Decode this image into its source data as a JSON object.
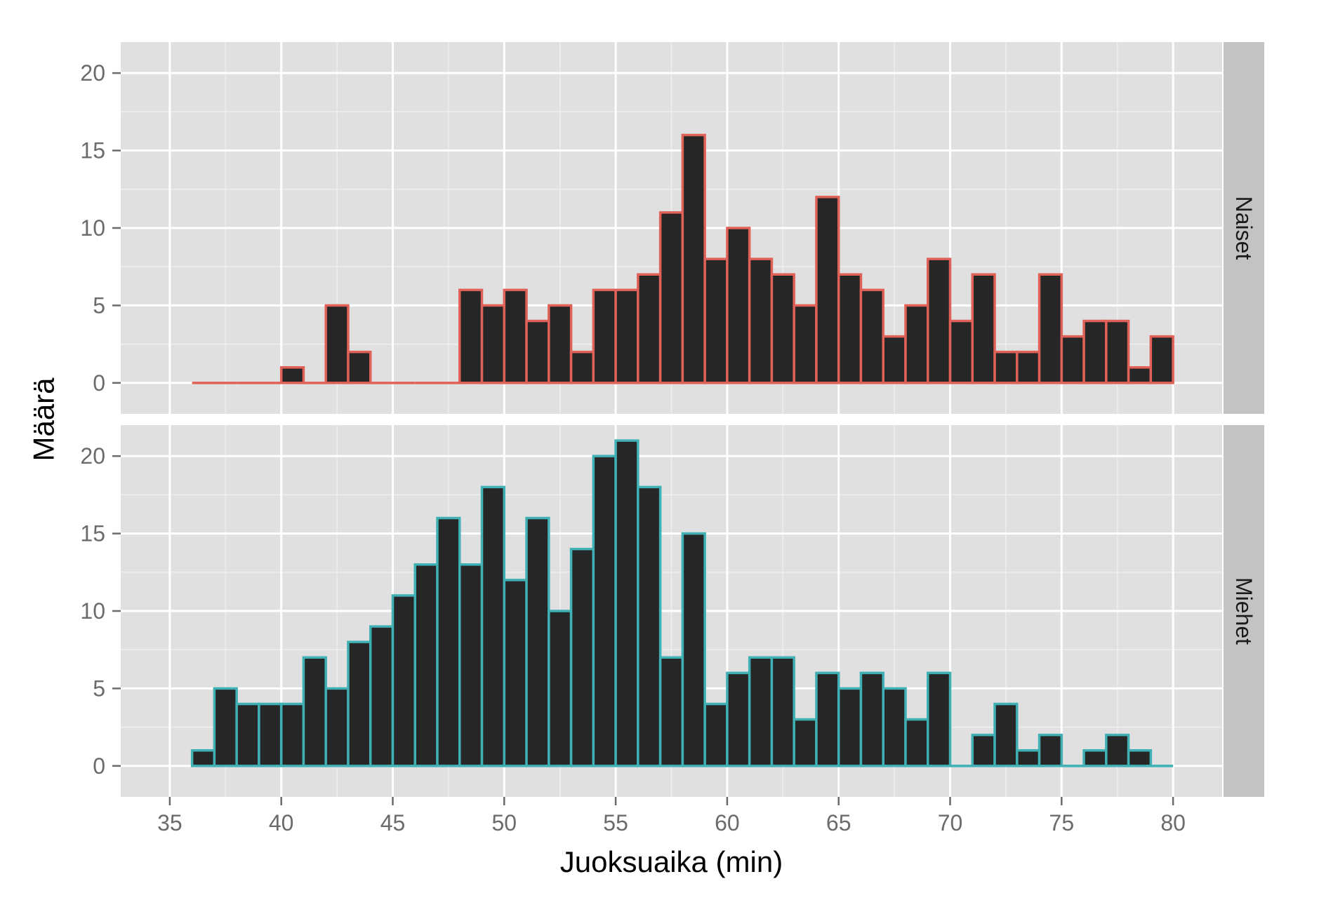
{
  "chart_data": {
    "type": "bar",
    "subtype": "faceted-histogram",
    "xlabel": "Juoksuaika (min)",
    "ylabel": "Määrä",
    "xlim": [
      32.8,
      82.2
    ],
    "ylim": [
      -2,
      22
    ],
    "x_ticks": [
      35,
      40,
      45,
      50,
      55,
      60,
      65,
      70,
      75,
      80
    ],
    "y_ticks": [
      0,
      5,
      10,
      15,
      20
    ],
    "grid": true,
    "bin_width": 1,
    "bin_start": 36,
    "bar_fill": "#262626",
    "panel_background": "#e0e0e0",
    "strip_background": "#c3c3c3",
    "series": [
      {
        "name": "Naiset",
        "color": "#e06158",
        "bins": [
          36,
          37,
          38,
          39,
          40,
          41,
          42,
          43,
          44,
          45,
          46,
          47,
          48,
          49,
          50,
          51,
          52,
          53,
          54,
          55,
          56,
          57,
          58,
          59,
          60,
          61,
          62,
          63,
          64,
          65,
          66,
          67,
          68,
          69,
          70,
          71,
          72,
          73,
          74,
          75,
          76,
          77,
          78,
          79
        ],
        "values": [
          0,
          0,
          0,
          0,
          1,
          0,
          5,
          2,
          0,
          0,
          0,
          0,
          6,
          5,
          6,
          4,
          5,
          2,
          6,
          6,
          7,
          11,
          16,
          8,
          10,
          8,
          7,
          5,
          12,
          7,
          6,
          3,
          5,
          8,
          4,
          7,
          2,
          2,
          7,
          3,
          4,
          4,
          1,
          3
        ]
      },
      {
        "name": "Miehet",
        "color": "#3fb0b3",
        "bins": [
          36,
          37,
          38,
          39,
          40,
          41,
          42,
          43,
          44,
          45,
          46,
          47,
          48,
          49,
          50,
          51,
          52,
          53,
          54,
          55,
          56,
          57,
          58,
          59,
          60,
          61,
          62,
          63,
          64,
          65,
          66,
          67,
          68,
          69,
          70,
          71,
          72,
          73,
          74,
          75,
          76,
          77,
          78,
          79
        ],
        "values": [
          1,
          5,
          4,
          4,
          4,
          7,
          5,
          8,
          9,
          11,
          13,
          16,
          13,
          18,
          12,
          16,
          10,
          14,
          20,
          21,
          18,
          7,
          15,
          4,
          6,
          7,
          7,
          3,
          6,
          5,
          6,
          5,
          3,
          6,
          0,
          2,
          4,
          1,
          2,
          0,
          1,
          2,
          1,
          0
        ]
      }
    ]
  }
}
